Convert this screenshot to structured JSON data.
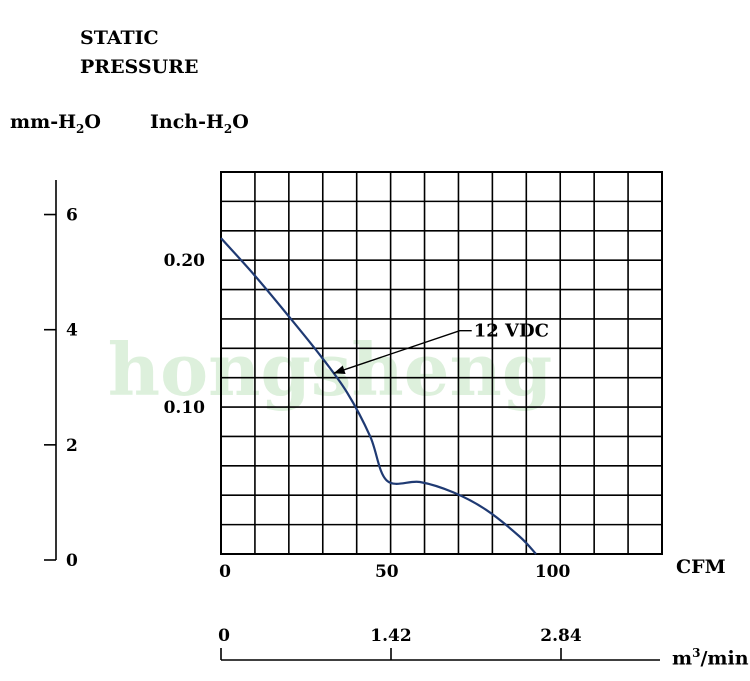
{
  "title_line1": "STATIC",
  "title_line2": "PRESSURE",
  "left_axis_label": "mm-H",
  "right_axis_label": "Inch-H",
  "axis_label_subscript": "2",
  "axis_label_suffix": "O",
  "curve_label": "12 VDC",
  "cfm_label": "CFM",
  "m3_label_base": "m",
  "m3_label_exp": "3",
  "m3_label_tail": "/min",
  "watermark_text": "hongsheng",
  "colors": {
    "curve": "#1f3a73",
    "grid": "#000000",
    "watermark": "#9fd39a"
  },
  "chart_data": {
    "type": "line",
    "series": [
      {
        "name": "12 VDC",
        "x": [
          0,
          10,
          20,
          30,
          38,
          45,
          50,
          60,
          70,
          80,
          90,
          95
        ],
        "y": [
          0.215,
          0.19,
          0.163,
          0.135,
          0.11,
          0.08,
          0.05,
          0.049,
          0.042,
          0.03,
          0.012,
          0.0
        ]
      }
    ],
    "x_cfm": {
      "range": [
        0,
        133
      ],
      "ticks": [
        0,
        50,
        100
      ],
      "label": "CFM"
    },
    "y_inch": {
      "range": [
        0,
        0.26
      ],
      "ticks": [
        0.1,
        0.2
      ],
      "tick_labels": [
        "0.10",
        "0.20"
      ]
    },
    "y_mm": {
      "range": [
        0,
        6.6
      ],
      "ticks": [
        0,
        2,
        4,
        6
      ],
      "tick_labels": [
        "0",
        "2",
        "4",
        "6"
      ]
    },
    "x_m3": {
      "ticks": [
        0,
        1.42,
        2.84
      ],
      "tick_labels": [
        "0",
        "1.42",
        "2.84"
      ],
      "label": "m3/min"
    },
    "grid": true,
    "grid_columns": 13,
    "grid_rows": 13
  }
}
